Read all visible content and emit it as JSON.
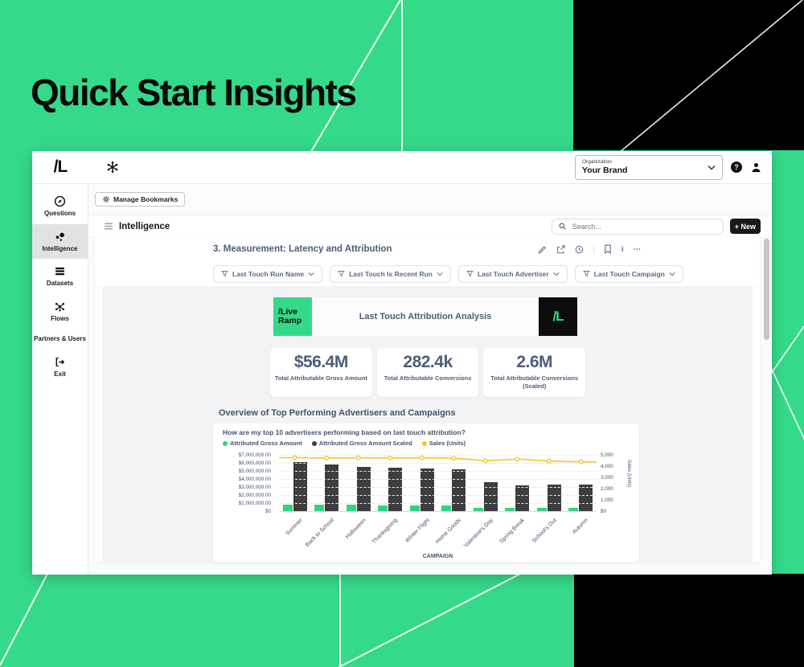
{
  "page": {
    "title": "Quick Start Insights"
  },
  "colors": {
    "background_green": "#35d98a",
    "bar_green": "#2fd57f",
    "bar_dark": "#3d3d40",
    "line_yellow": "#f6c62d",
    "slate_text": "#4e5d78",
    "black": "#0d0d0d"
  },
  "window": {
    "topbar": {
      "logo": "/L",
      "org_label": "Organization",
      "org_value": "Your Brand"
    },
    "sidebar": {
      "items": [
        {
          "label": "Questions",
          "icon": "compass-icon",
          "active": false
        },
        {
          "label": "Intelligence",
          "icon": "bubbles-icon",
          "active": true
        },
        {
          "label": "Datasets",
          "icon": "datasets-icon",
          "active": false
        },
        {
          "label": "Flows",
          "icon": "flows-icon",
          "active": false
        },
        {
          "label": "Partners & Users",
          "icon": null,
          "active": false
        },
        {
          "label": "Exit",
          "icon": "exit-icon",
          "active": false
        }
      ]
    },
    "bookmarks_bar": {
      "manage_bookmarks_label": "Manage Bookmarks"
    },
    "content_header": {
      "title": "Intelligence",
      "search_placeholder": "Search...",
      "new_button_label": "+ New"
    },
    "dashboard": {
      "title": "3. Measurement: Latency and Attribution",
      "filters": [
        "Last Touch Run Name",
        "Last Touch Is Recent Run",
        "Last Touch Advertiser",
        "Last Touch Campaign"
      ],
      "brand": {
        "logo_left_line1": "/Live",
        "logo_left_line2": "Ramp",
        "heading": "Last Touch Attribution Analysis",
        "logo_right": "/L"
      },
      "kpis": [
        {
          "value": "$56.4M",
          "label": "Total Attributable Gross Amount"
        },
        {
          "value": "282.4k",
          "label": "Total Attributable Conversions"
        },
        {
          "value": "2.6M",
          "label": "Total Attributable Conversions (Scaled)"
        }
      ],
      "section_title": "Overview of Top Performing Advertisers and Campaigns",
      "chart_question": "How are my top 10 advertisers performing based on last touch attribution?"
    }
  },
  "chart_data": {
    "type": "bar",
    "subtype": "grouped bars with overlaid line",
    "title": "How are my top 10 advertisers performing based on last touch attribution?",
    "categories": [
      "Summer",
      "Back to School",
      "Halloween",
      "Thanksgiving",
      "Winter Flight",
      "Home Goods",
      "Valentine's Day",
      "Spring Break",
      "School's Out",
      "Autumn"
    ],
    "series": [
      {
        "name": "Attributed Gross Amount",
        "type": "bar",
        "axis": "left",
        "color": "#2fd57f",
        "values": [
          800000,
          780000,
          760000,
          720000,
          720000,
          700000,
          450000,
          400000,
          420000,
          400000
        ]
      },
      {
        "name": "Attributed Gross Amount Scaled",
        "type": "bar",
        "axis": "left",
        "color": "#3d3d40",
        "values": [
          6100000,
          5800000,
          5500000,
          5400000,
          5350000,
          5200000,
          3600000,
          3200000,
          3300000,
          3300000
        ]
      },
      {
        "name": "Sales (Units)",
        "type": "line",
        "axis": "right",
        "color": "#f6c62d",
        "values": [
          4750,
          4720,
          4740,
          4720,
          4730,
          4700,
          4480,
          4620,
          4450,
          4380
        ]
      }
    ],
    "left_axis": {
      "max": 7000000,
      "ticks": [
        "$7,000,000.00",
        "$6,000,000.00",
        "$5,000,000.00",
        "$4,000,000.00",
        "$3,000,000.00",
        "$2,000,000.00",
        "$1,000,000.00",
        "$0"
      ]
    },
    "right_axis": {
      "max": 5000,
      "label": "Sales (Units)",
      "ticks": [
        "5,000",
        "4,000",
        "3,000",
        "2,000",
        "1,000",
        "$0"
      ]
    },
    "xlabel": "CAMPAIGN",
    "grid": "horizontal dashed",
    "legend_position": "top-left"
  }
}
